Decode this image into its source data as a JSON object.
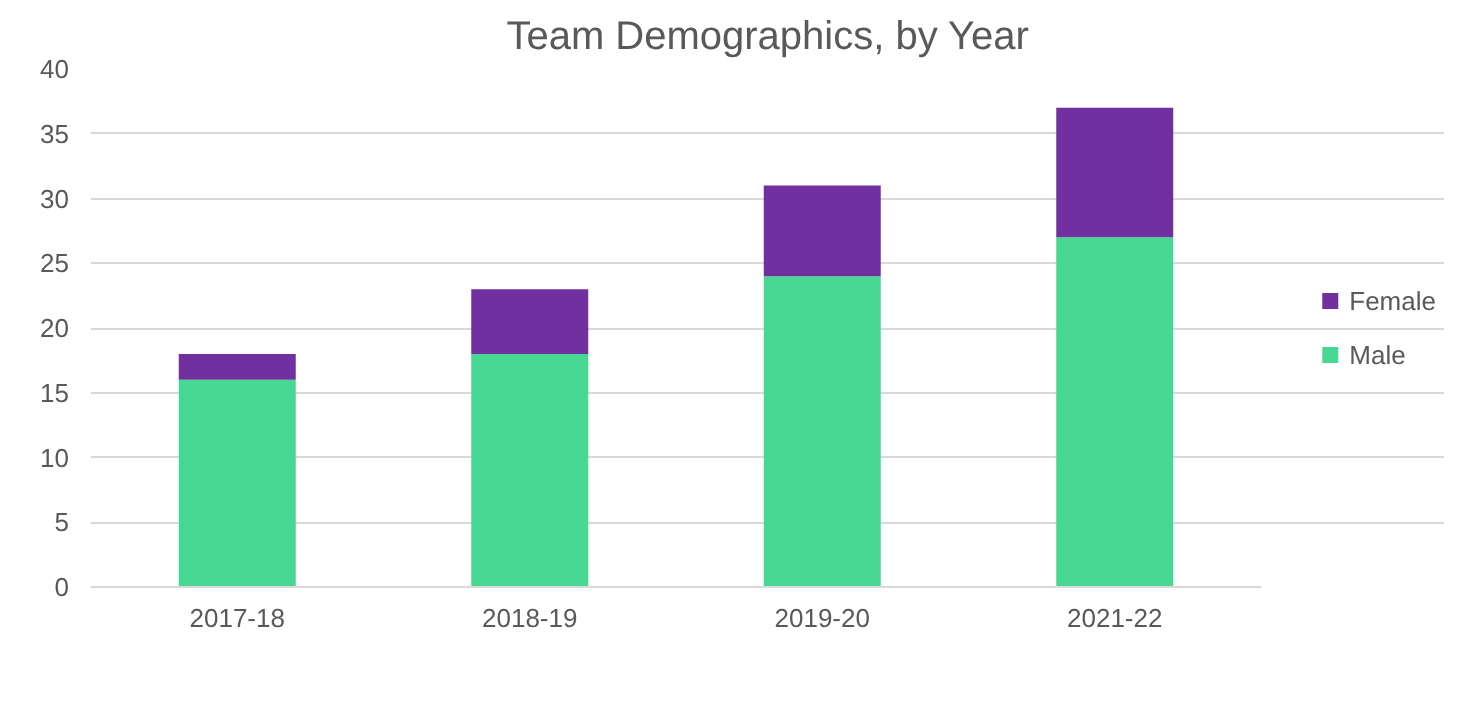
{
  "chart_data": {
    "type": "bar",
    "title": "Team Demographics, by Year",
    "categories": [
      "2017-18",
      "2018-19",
      "2019-20",
      "2021-22"
    ],
    "stacked": true,
    "series": [
      {
        "name": "Male",
        "color": "#47d993",
        "values": [
          16,
          18,
          24,
          27
        ]
      },
      {
        "name": "Female",
        "color": "#7030a0",
        "values": [
          2,
          5,
          7,
          10
        ]
      }
    ],
    "ylim": [
      0,
      40
    ],
    "yticks": [
      0,
      5,
      10,
      15,
      20,
      25,
      30,
      35,
      40
    ],
    "grid": "y",
    "legend": "right"
  }
}
